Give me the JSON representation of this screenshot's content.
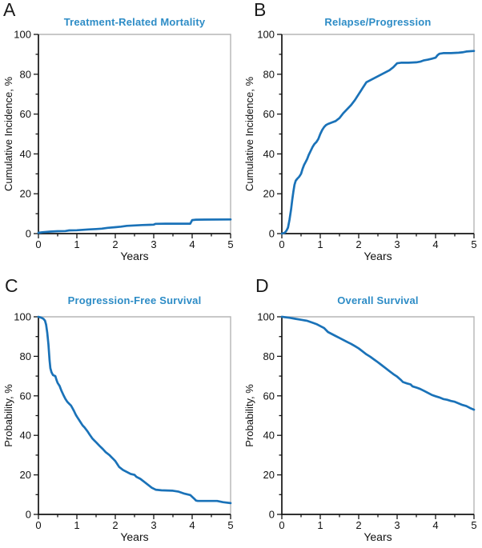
{
  "figure": {
    "title_color": "#2d8cc6",
    "curve_color": "#1a72b8",
    "axis_color": "#141414",
    "frame_color": "#b5b5b5",
    "tick_label_color": "#111111",
    "background": "#ffffff"
  },
  "chart_data": [
    {
      "type": "line",
      "panel_label": "A",
      "title": "Treatment-Related Mortality",
      "xlabel": "Years",
      "ylabel": "Cumulative Incidence, %",
      "xlim": [
        0,
        5
      ],
      "ylim": [
        0,
        100
      ],
      "x_ticks": [
        0,
        1,
        2,
        3,
        4,
        5
      ],
      "y_ticks": [
        0,
        20,
        40,
        60,
        80,
        100
      ],
      "x_minor_step": 0.5,
      "y_minor_step": 10,
      "grid": false,
      "legend": "none",
      "series": [
        {
          "name": "Treatment-related mortality",
          "points": [
            [
              0,
              0.4
            ],
            [
              0.1,
              0.7
            ],
            [
              0.3,
              1.0
            ],
            [
              0.5,
              1.2
            ],
            [
              0.7,
              1.3
            ],
            [
              0.8,
              1.6
            ],
            [
              1.0,
              1.7
            ],
            [
              1.15,
              1.9
            ],
            [
              1.3,
              2.1
            ],
            [
              1.5,
              2.3
            ],
            [
              1.65,
              2.5
            ],
            [
              1.8,
              2.9
            ],
            [
              2.0,
              3.2
            ],
            [
              2.15,
              3.5
            ],
            [
              2.3,
              3.9
            ],
            [
              2.5,
              4.1
            ],
            [
              2.7,
              4.3
            ],
            [
              2.9,
              4.4
            ],
            [
              3.0,
              4.5
            ],
            [
              3.05,
              4.9
            ],
            [
              3.3,
              5.0
            ],
            [
              3.95,
              5.0
            ],
            [
              4.0,
              6.8
            ],
            [
              4.1,
              7.0
            ],
            [
              5.0,
              7.1
            ]
          ]
        }
      ]
    },
    {
      "type": "line",
      "panel_label": "B",
      "title": "Relapse/Progression",
      "xlabel": "Years",
      "ylabel": "Cumulative Incidence, %",
      "xlim": [
        0,
        5
      ],
      "ylim": [
        0,
        100
      ],
      "x_ticks": [
        0,
        1,
        2,
        3,
        4,
        5
      ],
      "y_ticks": [
        0,
        20,
        40,
        60,
        80,
        100
      ],
      "x_minor_step": 0.5,
      "y_minor_step": 10,
      "grid": false,
      "legend": "none",
      "series": [
        {
          "name": "Relapse/progression",
          "points": [
            [
              0,
              0
            ],
            [
              0.08,
              0.5
            ],
            [
              0.12,
              1.5
            ],
            [
              0.16,
              3
            ],
            [
              0.2,
              7
            ],
            [
              0.24,
              12
            ],
            [
              0.27,
              17
            ],
            [
              0.3,
              21
            ],
            [
              0.33,
              24.5
            ],
            [
              0.36,
              26.5
            ],
            [
              0.4,
              27.5
            ],
            [
              0.45,
              28.5
            ],
            [
              0.5,
              30
            ],
            [
              0.54,
              32.5
            ],
            [
              0.58,
              34.5
            ],
            [
              0.62,
              36
            ],
            [
              0.66,
              37.5
            ],
            [
              0.7,
              39.5
            ],
            [
              0.75,
              41.5
            ],
            [
              0.8,
              43.5
            ],
            [
              0.85,
              45
            ],
            [
              0.9,
              46
            ],
            [
              0.95,
              47.5
            ],
            [
              1.0,
              50
            ],
            [
              1.05,
              52
            ],
            [
              1.1,
              53.5
            ],
            [
              1.15,
              54.5
            ],
            [
              1.2,
              55
            ],
            [
              1.3,
              55.8
            ],
            [
              1.4,
              56.5
            ],
            [
              1.5,
              58
            ],
            [
              1.6,
              60.5
            ],
            [
              1.7,
              62.5
            ],
            [
              1.8,
              64.5
            ],
            [
              1.9,
              67
            ],
            [
              2.0,
              70
            ],
            [
              2.05,
              71.5
            ],
            [
              2.1,
              73
            ],
            [
              2.15,
              74.5
            ],
            [
              2.2,
              76
            ],
            [
              2.3,
              77
            ],
            [
              2.4,
              78
            ],
            [
              2.5,
              79
            ],
            [
              2.6,
              80
            ],
            [
              2.7,
              81
            ],
            [
              2.8,
              82
            ],
            [
              2.9,
              83.5
            ],
            [
              2.95,
              84.5
            ],
            [
              3.0,
              85.5
            ],
            [
              3.1,
              85.8
            ],
            [
              3.3,
              85.8
            ],
            [
              3.5,
              86
            ],
            [
              3.6,
              86.3
            ],
            [
              3.7,
              87
            ],
            [
              3.8,
              87.3
            ],
            [
              3.9,
              87.8
            ],
            [
              4.0,
              88.3
            ],
            [
              4.05,
              89.5
            ],
            [
              4.1,
              90.3
            ],
            [
              4.2,
              90.6
            ],
            [
              4.4,
              90.6
            ],
            [
              4.6,
              90.8
            ],
            [
              4.7,
              91
            ],
            [
              4.8,
              91.4
            ],
            [
              5.0,
              91.7
            ]
          ]
        }
      ]
    },
    {
      "type": "line",
      "panel_label": "C",
      "title": "Progression-Free Survival",
      "xlabel": "Years",
      "ylabel": "Probability, %",
      "xlim": [
        0,
        5
      ],
      "ylim": [
        0,
        100
      ],
      "x_ticks": [
        0,
        1,
        2,
        3,
        4,
        5
      ],
      "y_ticks": [
        0,
        20,
        40,
        60,
        80,
        100
      ],
      "x_minor_step": 0.5,
      "y_minor_step": 10,
      "grid": false,
      "legend": "none",
      "series": [
        {
          "name": "Progression-free survival",
          "points": [
            [
              0,
              100
            ],
            [
              0.08,
              99.5
            ],
            [
              0.13,
              99
            ],
            [
              0.17,
              98
            ],
            [
              0.2,
              96
            ],
            [
              0.23,
              92
            ],
            [
              0.26,
              86
            ],
            [
              0.29,
              78
            ],
            [
              0.31,
              74
            ],
            [
              0.34,
              72
            ],
            [
              0.38,
              70.5
            ],
            [
              0.44,
              70
            ],
            [
              0.47,
              68
            ],
            [
              0.5,
              66.5
            ],
            [
              0.55,
              65
            ],
            [
              0.6,
              62.5
            ],
            [
              0.66,
              60
            ],
            [
              0.7,
              58.5
            ],
            [
              0.75,
              57
            ],
            [
              0.8,
              56
            ],
            [
              0.85,
              55
            ],
            [
              0.88,
              54
            ],
            [
              0.92,
              52.5
            ],
            [
              0.97,
              50.5
            ],
            [
              1.0,
              49.5
            ],
            [
              1.05,
              48
            ],
            [
              1.1,
              46.5
            ],
            [
              1.15,
              45
            ],
            [
              1.2,
              44
            ],
            [
              1.28,
              42
            ],
            [
              1.33,
              40.5
            ],
            [
              1.4,
              38.5
            ],
            [
              1.45,
              37.5
            ],
            [
              1.5,
              36.5
            ],
            [
              1.55,
              35.5
            ],
            [
              1.6,
              34.5
            ],
            [
              1.68,
              33
            ],
            [
              1.75,
              31.5
            ],
            [
              1.85,
              30
            ],
            [
              1.9,
              29
            ],
            [
              1.95,
              28
            ],
            [
              2.0,
              27
            ],
            [
              2.05,
              25.5
            ],
            [
              2.1,
              24
            ],
            [
              2.2,
              22.5
            ],
            [
              2.3,
              21.5
            ],
            [
              2.4,
              20.5
            ],
            [
              2.5,
              20
            ],
            [
              2.55,
              19
            ],
            [
              2.65,
              18
            ],
            [
              2.75,
              16.5
            ],
            [
              2.85,
              15
            ],
            [
              2.95,
              13.5
            ],
            [
              3.05,
              12.5
            ],
            [
              3.2,
              12.2
            ],
            [
              3.5,
              12
            ],
            [
              3.65,
              11.5
            ],
            [
              3.8,
              10.5
            ],
            [
              3.95,
              9.8
            ],
            [
              4.05,
              8
            ],
            [
              4.1,
              7
            ],
            [
              4.15,
              6.8
            ],
            [
              4.65,
              6.8
            ],
            [
              4.8,
              6.2
            ],
            [
              5.0,
              5.7
            ]
          ]
        }
      ]
    },
    {
      "type": "line",
      "panel_label": "D",
      "title": "Overall Survival",
      "xlabel": "Years",
      "ylabel": "Probability, %",
      "xlim": [
        0,
        5
      ],
      "ylim": [
        0,
        100
      ],
      "x_ticks": [
        0,
        1,
        2,
        3,
        4,
        5
      ],
      "y_ticks": [
        0,
        20,
        40,
        60,
        80,
        100
      ],
      "x_minor_step": 0.5,
      "y_minor_step": 10,
      "grid": false,
      "legend": "none",
      "series": [
        {
          "name": "Overall survival",
          "points": [
            [
              0,
              100
            ],
            [
              0.2,
              99.5
            ],
            [
              0.35,
              99
            ],
            [
              0.5,
              98.5
            ],
            [
              0.65,
              98
            ],
            [
              0.8,
              97
            ],
            [
              0.9,
              96.3
            ],
            [
              1.0,
              95.3
            ],
            [
              1.1,
              94.3
            ],
            [
              1.2,
              92.3
            ],
            [
              1.3,
              91.3
            ],
            [
              1.4,
              90.3
            ],
            [
              1.5,
              89.3
            ],
            [
              1.6,
              88.3
            ],
            [
              1.7,
              87.3
            ],
            [
              1.8,
              86.3
            ],
            [
              1.9,
              85.2
            ],
            [
              2.0,
              84
            ],
            [
              2.1,
              82.5
            ],
            [
              2.2,
              81
            ],
            [
              2.3,
              79.8
            ],
            [
              2.4,
              78.4
            ],
            [
              2.5,
              77
            ],
            [
              2.6,
              75.5
            ],
            [
              2.7,
              74
            ],
            [
              2.8,
              72.5
            ],
            [
              2.9,
              71
            ],
            [
              3.0,
              69.7
            ],
            [
              3.1,
              68
            ],
            [
              3.15,
              67
            ],
            [
              3.25,
              66.3
            ],
            [
              3.35,
              65.8
            ],
            [
              3.4,
              64.8
            ],
            [
              3.5,
              64.2
            ],
            [
              3.6,
              63.5
            ],
            [
              3.7,
              62.5
            ],
            [
              3.8,
              61.5
            ],
            [
              3.9,
              60.5
            ],
            [
              4.0,
              59.8
            ],
            [
              4.1,
              59.2
            ],
            [
              4.2,
              58.4
            ],
            [
              4.3,
              58
            ],
            [
              4.4,
              57.4
            ],
            [
              4.5,
              57
            ],
            [
              4.6,
              56.2
            ],
            [
              4.7,
              55.4
            ],
            [
              4.8,
              54.8
            ],
            [
              4.9,
              53.8
            ],
            [
              5.0,
              53
            ]
          ]
        }
      ]
    }
  ]
}
